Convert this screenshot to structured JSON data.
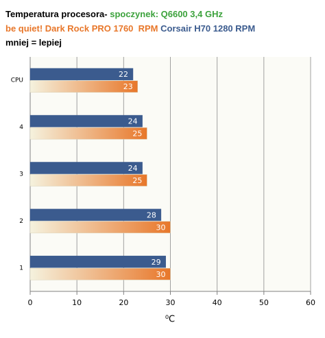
{
  "chart_data": {
    "type": "hbar",
    "title": "Temperatura procesora-",
    "subtitle": "spoczynek: Q6600 3,4 GHz",
    "subtitle_color": "#3ca23c",
    "note": "mniej = lepiej",
    "x_label": "⁰C",
    "categories": [
      "CPU",
      "4",
      "3",
      "2",
      "1"
    ],
    "series": [
      {
        "name": "Corsair H70 1280 RPM",
        "color": "#3b5b8e",
        "values": [
          22,
          24,
          24,
          28,
          29
        ]
      },
      {
        "name": "be quiet! Dark Rock PRO 1760  RPM",
        "color": "#e8772a",
        "values": [
          23,
          25,
          25,
          30,
          30
        ]
      }
    ],
    "xlim": [
      0,
      60
    ],
    "xticks": [
      0,
      10,
      20,
      30,
      40,
      50,
      60
    ],
    "grid": true
  }
}
